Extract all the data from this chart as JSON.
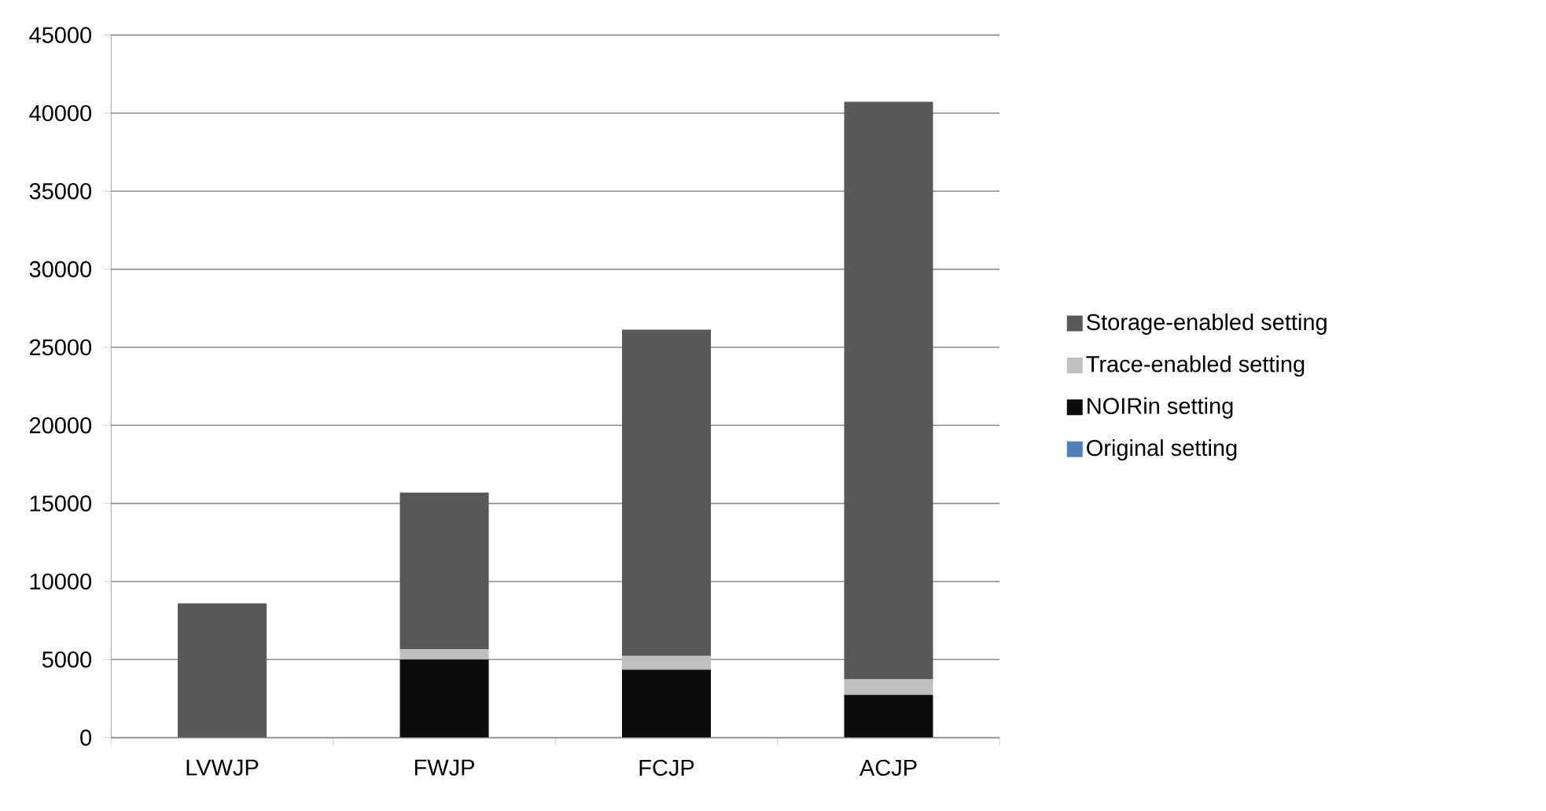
{
  "chart_data": {
    "type": "bar",
    "stacked": true,
    "categories": [
      "LVWJP",
      "FWJP",
      "FCJP",
      "ACJP"
    ],
    "series": [
      {
        "name": "Original setting",
        "color": "#4f81bd",
        "values": [
          0,
          0,
          0,
          0
        ]
      },
      {
        "name": "NOIRin setting",
        "color": "#0d0d0d",
        "values": [
          0,
          5000,
          4350,
          2730
        ]
      },
      {
        "name": "Trace-enabled setting",
        "color": "#bfbfbf",
        "values": [
          0,
          650,
          880,
          1000
        ]
      },
      {
        "name": "Storage-enabled setting",
        "color": "#595959",
        "values": [
          8600,
          10050,
          20900,
          37000
        ]
      }
    ],
    "ylim": [
      0,
      45000
    ],
    "yticks": [
      0,
      5000,
      10000,
      15000,
      20000,
      25000,
      30000,
      35000,
      40000,
      45000
    ],
    "grid": "y",
    "legend": "right"
  }
}
